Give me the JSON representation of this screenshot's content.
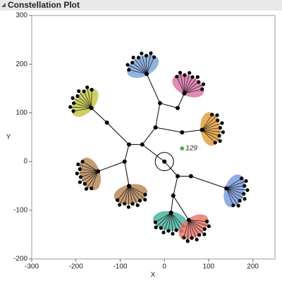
{
  "chart_data": {
    "type": "constellation",
    "title": "Constellation Plot",
    "xlabel": "X",
    "ylabel": "Y",
    "xlim": [
      -300,
      250
    ],
    "ylim": [
      -200,
      300
    ],
    "xticks": [
      -300,
      -200,
      -100,
      0,
      100,
      200
    ],
    "yticks": [
      -200,
      -100,
      0,
      100,
      200,
      300
    ],
    "nodes": [
      {
        "x": 0,
        "y": 0,
        "parent": null
      },
      {
        "x": -50,
        "y": 35,
        "parent": 0
      },
      {
        "x": 30,
        "y": -30,
        "parent": 0
      },
      {
        "x": -80,
        "y": 35,
        "parent": 1
      },
      {
        "x": -20,
        "y": 70,
        "parent": 1
      },
      {
        "x": -10,
        "y": 120,
        "parent": 4
      },
      {
        "x": -40,
        "y": 180,
        "parent": 5,
        "color": "#7ea6d8"
      },
      {
        "x": 30,
        "y": 110,
        "parent": 5
      },
      {
        "x": 45,
        "y": 140,
        "parent": 7,
        "color": "#d977a8"
      },
      {
        "x": 40,
        "y": 60,
        "parent": 4
      },
      {
        "x": 85,
        "y": 65,
        "parent": 9,
        "color": "#e0a040"
      },
      {
        "x": -130,
        "y": 80,
        "parent": 3
      },
      {
        "x": -165,
        "y": 110,
        "parent": 11,
        "color": "#c6c64a"
      },
      {
        "x": -90,
        "y": 0,
        "parent": 3
      },
      {
        "x": -150,
        "y": -20,
        "parent": 13,
        "color": "#b9895a"
      },
      {
        "x": -80,
        "y": -50,
        "parent": 13,
        "color": "#b9895a"
      },
      {
        "x": 60,
        "y": -30,
        "parent": 2
      },
      {
        "x": 140,
        "y": -55,
        "parent": 16,
        "color": "#7d9de0"
      },
      {
        "x": 20,
        "y": -70,
        "parent": 2
      },
      {
        "x": 15,
        "y": -105,
        "parent": 18,
        "color": "#4fb3a0"
      },
      {
        "x": 55,
        "y": -120,
        "parent": 18,
        "color": "#e87a6e"
      }
    ],
    "annotations": [
      {
        "text": "129",
        "x": 40,
        "y": 27,
        "color": "#4caf50"
      }
    ]
  }
}
